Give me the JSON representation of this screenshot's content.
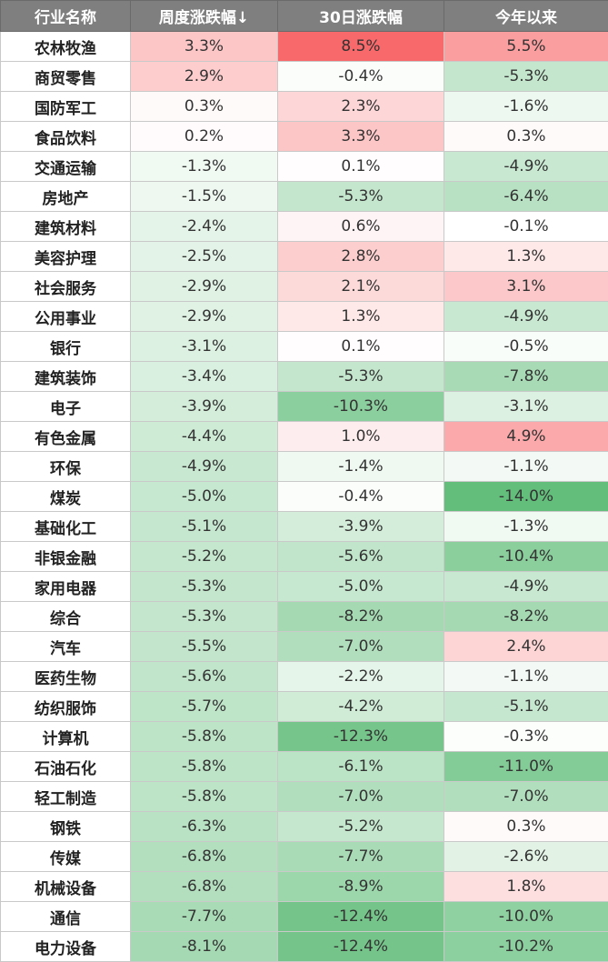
{
  "chart_data": {
    "type": "table",
    "columns": [
      "行业名称",
      "周度涨跌幅↓",
      "30日涨跌幅",
      "今年以来"
    ],
    "rows": [
      {
        "name": "农林牧渔",
        "values": [
          3.3,
          8.5,
          5.5
        ],
        "labels": [
          "3.3%",
          "8.5%",
          "5.5%"
        ]
      },
      {
        "name": "商贸零售",
        "values": [
          2.9,
          -0.4,
          -5.3
        ],
        "labels": [
          "2.9%",
          "-0.4%",
          "-5.3%"
        ]
      },
      {
        "name": "国防军工",
        "values": [
          0.3,
          2.3,
          -1.6
        ],
        "labels": [
          "0.3%",
          "2.3%",
          "-1.6%"
        ]
      },
      {
        "name": "食品饮料",
        "values": [
          0.2,
          3.3,
          0.3
        ],
        "labels": [
          "0.2%",
          "3.3%",
          "0.3%"
        ]
      },
      {
        "name": "交通运输",
        "values": [
          -1.3,
          0.1,
          -4.9
        ],
        "labels": [
          "-1.3%",
          "0.1%",
          "-4.9%"
        ]
      },
      {
        "name": "房地产",
        "values": [
          -1.5,
          -5.3,
          -6.4
        ],
        "labels": [
          "-1.5%",
          "-5.3%",
          "-6.4%"
        ]
      },
      {
        "name": "建筑材料",
        "values": [
          -2.4,
          0.6,
          -0.1
        ],
        "labels": [
          "-2.4%",
          "0.6%",
          "-0.1%"
        ]
      },
      {
        "name": "美容护理",
        "values": [
          -2.5,
          2.8,
          1.3
        ],
        "labels": [
          "-2.5%",
          "2.8%",
          "1.3%"
        ]
      },
      {
        "name": "社会服务",
        "values": [
          -2.9,
          2.1,
          3.1
        ],
        "labels": [
          "-2.9%",
          "2.1%",
          "3.1%"
        ]
      },
      {
        "name": "公用事业",
        "values": [
          -2.9,
          1.3,
          -4.9
        ],
        "labels": [
          "-2.9%",
          "1.3%",
          "-4.9%"
        ]
      },
      {
        "name": "银行",
        "values": [
          -3.1,
          0.1,
          -0.5
        ],
        "labels": [
          "-3.1%",
          "0.1%",
          "-0.5%"
        ]
      },
      {
        "name": "建筑装饰",
        "values": [
          -3.4,
          -5.3,
          -7.8
        ],
        "labels": [
          "-3.4%",
          "-5.3%",
          "-7.8%"
        ]
      },
      {
        "name": "电子",
        "values": [
          -3.9,
          -10.3,
          -3.1
        ],
        "labels": [
          "-3.9%",
          "-10.3%",
          "-3.1%"
        ]
      },
      {
        "name": "有色金属",
        "values": [
          -4.4,
          1.0,
          4.9
        ],
        "labels": [
          "-4.4%",
          "1.0%",
          "4.9%"
        ]
      },
      {
        "name": "环保",
        "values": [
          -4.9,
          -1.4,
          -1.1
        ],
        "labels": [
          "-4.9%",
          "-1.4%",
          "-1.1%"
        ]
      },
      {
        "name": "煤炭",
        "values": [
          -5.0,
          -0.4,
          -14.0
        ],
        "labels": [
          "-5.0%",
          "-0.4%",
          "-14.0%"
        ]
      },
      {
        "name": "基础化工",
        "values": [
          -5.1,
          -3.9,
          -1.3
        ],
        "labels": [
          "-5.1%",
          "-3.9%",
          "-1.3%"
        ]
      },
      {
        "name": "非银金融",
        "values": [
          -5.2,
          -5.6,
          -10.4
        ],
        "labels": [
          "-5.2%",
          "-5.6%",
          "-10.4%"
        ]
      },
      {
        "name": "家用电器",
        "values": [
          -5.3,
          -5.0,
          -4.9
        ],
        "labels": [
          "-5.3%",
          "-5.0%",
          "-4.9%"
        ]
      },
      {
        "name": "综合",
        "values": [
          -5.3,
          -8.2,
          -8.2
        ],
        "labels": [
          "-5.3%",
          "-8.2%",
          "-8.2%"
        ]
      },
      {
        "name": "汽车",
        "values": [
          -5.5,
          -7.0,
          2.4
        ],
        "labels": [
          "-5.5%",
          "-7.0%",
          "2.4%"
        ]
      },
      {
        "name": "医药生物",
        "values": [
          -5.6,
          -2.2,
          -1.1
        ],
        "labels": [
          "-5.6%",
          "-2.2%",
          "-1.1%"
        ]
      },
      {
        "name": "纺织服饰",
        "values": [
          -5.7,
          -4.2,
          -5.1
        ],
        "labels": [
          "-5.7%",
          "-4.2%",
          "-5.1%"
        ]
      },
      {
        "name": "计算机",
        "values": [
          -5.8,
          -12.3,
          -0.3
        ],
        "labels": [
          "-5.8%",
          "-12.3%",
          "-0.3%"
        ]
      },
      {
        "name": "石油石化",
        "values": [
          -5.8,
          -6.1,
          -11.0
        ],
        "labels": [
          "-5.8%",
          "-6.1%",
          "-11.0%"
        ]
      },
      {
        "name": "轻工制造",
        "values": [
          -5.8,
          -7.0,
          -7.0
        ],
        "labels": [
          "-5.8%",
          "-7.0%",
          "-7.0%"
        ]
      },
      {
        "name": "钢铁",
        "values": [
          -6.3,
          -5.2,
          0.3
        ],
        "labels": [
          "-6.3%",
          "-5.2%",
          "0.3%"
        ]
      },
      {
        "name": "传媒",
        "values": [
          -6.8,
          -7.7,
          -2.6
        ],
        "labels": [
          "-6.8%",
          "-7.7%",
          "-2.6%"
        ]
      },
      {
        "name": "机械设备",
        "values": [
          -6.8,
          -8.9,
          1.8
        ],
        "labels": [
          "-6.8%",
          "-8.9%",
          "1.8%"
        ]
      },
      {
        "name": "通信",
        "values": [
          -7.7,
          -12.4,
          -10.0
        ],
        "labels": [
          "-7.7%",
          "-12.4%",
          "-10.0%"
        ]
      },
      {
        "name": "电力设备",
        "values": [
          -8.1,
          -12.4,
          -10.2
        ],
        "labels": [
          "-8.1%",
          "-12.4%",
          "-10.2%"
        ]
      }
    ],
    "colors": {
      "header_bg": "#7f7f7f",
      "positive_max": "#f8696b",
      "negative_max": "#63be7b",
      "neutral": "#ffffff"
    },
    "color_scale": {
      "max_positive": 8.5,
      "max_negative": 14.0
    }
  }
}
